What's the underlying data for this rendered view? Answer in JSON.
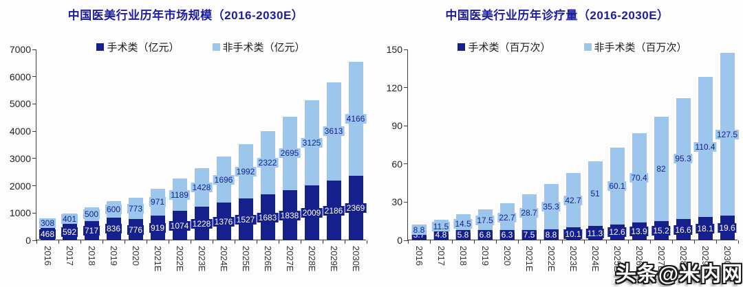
{
  "watermark": "头条@米内网",
  "colors": {
    "surgical": "#15208c",
    "nonsurgical": "#9cc6ec",
    "title": "#1c1c9e",
    "axis": "#3a3a3a"
  },
  "chart_data": [
    {
      "type": "bar",
      "stacked": true,
      "title": "中国医美行业历年市场规模（2016-2030E）",
      "categories": [
        "2016",
        "2017",
        "2018",
        "2019",
        "2020",
        "2021E",
        "2022E",
        "2023E",
        "2024E",
        "2025E",
        "2026E",
        "2027E",
        "2028E",
        "2029E",
        "2030E"
      ],
      "series": [
        {
          "name": "手术类（亿元）",
          "color": "#15208c",
          "label_color": "#ffffff",
          "values": [
            468,
            592,
            717,
            836,
            776,
            919,
            1074,
            1228,
            1376,
            1527,
            1683,
            1838,
            2009,
            2186,
            2369
          ]
        },
        {
          "name": "非手术类（亿元）",
          "color": "#9cc6ec",
          "label_color": "#15208c",
          "values": [
            308,
            401,
            500,
            600,
            773,
            971,
            1189,
            1428,
            1696,
            1992,
            2322,
            2695,
            3125,
            3613,
            4166
          ]
        }
      ],
      "ylim": [
        0,
        7000
      ],
      "yticks": [
        0,
        1000,
        2000,
        3000,
        4000,
        5000,
        6000,
        7000
      ],
      "legend_position": "top",
      "grid": false
    },
    {
      "type": "bar",
      "stacked": true,
      "title": "中国医美行业历年诊疗量（2016-2030E）",
      "categories": [
        "2016",
        "2017",
        "2018",
        "2019",
        "2020",
        "2021E",
        "2022E",
        "2023E",
        "2024E",
        "2025E",
        "2026E",
        "2027E",
        "2028E",
        "2029E",
        "2030E"
      ],
      "series": [
        {
          "name": "手术类（百万次）",
          "color": "#15208c",
          "label_color": "#ffffff",
          "values": [
            3.7,
            4.8,
            5.8,
            6.8,
            6.3,
            7.5,
            8.8,
            10.1,
            11.3,
            12.6,
            13.9,
            15.2,
            16.6,
            18.1,
            19.6
          ]
        },
        {
          "name": "非手术类（百万次）",
          "color": "#9cc6ec",
          "label_color": "#15208c",
          "values": [
            8.8,
            11.5,
            14.5,
            17.5,
            22.7,
            28.7,
            35.3,
            42.7,
            51,
            60.1,
            70.4,
            82,
            95.3,
            110.4,
            127.5
          ]
        }
      ],
      "ylim": [
        0,
        150
      ],
      "yticks": [
        0,
        30,
        60,
        90,
        120,
        150
      ],
      "legend_position": "top",
      "grid": false
    }
  ]
}
